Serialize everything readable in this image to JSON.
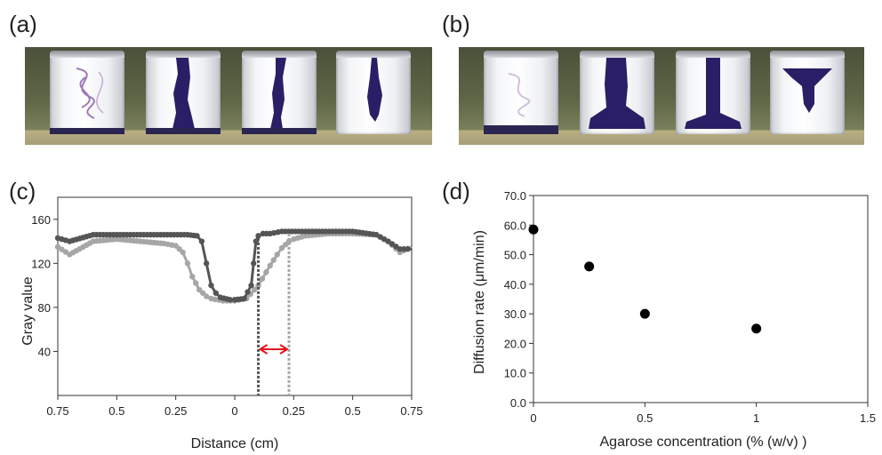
{
  "panels": {
    "a": "(a)",
    "b": "(b)",
    "c": "(c)",
    "d": "(d)"
  },
  "colors": {
    "dye": "#2a1f66",
    "series_dark": "#555555",
    "series_light": "#a6a6a6",
    "arrow": "#e8141b",
    "points": "#000000"
  },
  "chart_data": [
    {
      "panel": "c",
      "type": "line",
      "xlabel": "Distance (cm)",
      "ylabel": "Gray value",
      "xticks": [
        "0.75",
        "0.5",
        "0.25",
        "0",
        "0.25",
        "0.5",
        "0.75"
      ],
      "yticks": [
        40,
        80,
        120,
        160
      ],
      "xlim": [
        -0.75,
        0.75
      ],
      "ylim": [
        0,
        180
      ],
      "grid": false,
      "series": [
        {
          "x": [
            -0.75,
            -0.7,
            -0.6,
            -0.5,
            -0.4,
            -0.3,
            -0.2,
            -0.16,
            -0.14,
            -0.12,
            -0.1,
            -0.08,
            -0.06,
            -0.02,
            0.0,
            0.04,
            0.07,
            0.08,
            0.09,
            0.1,
            0.12,
            0.15,
            0.2,
            0.3,
            0.4,
            0.5,
            0.6,
            0.65,
            0.7,
            0.75
          ],
          "y": [
            143,
            140,
            146,
            146,
            146,
            146,
            146,
            145,
            140,
            120,
            100,
            93,
            89,
            87,
            87,
            88,
            100,
            120,
            140,
            145,
            147,
            147,
            149,
            149,
            149,
            149,
            146,
            140,
            133,
            133
          ]
        },
        {
          "x": [
            -0.75,
            -0.7,
            -0.6,
            -0.5,
            -0.4,
            -0.3,
            -0.25,
            -0.22,
            -0.2,
            -0.18,
            -0.15,
            -0.12,
            -0.1,
            -0.05,
            0.0,
            0.05,
            0.1,
            0.15,
            0.18,
            0.2,
            0.23,
            0.25,
            0.3,
            0.4,
            0.5,
            0.6,
            0.65,
            0.7,
            0.75
          ],
          "y": [
            135,
            128,
            140,
            142,
            140,
            138,
            136,
            130,
            120,
            108,
            96,
            90,
            88,
            86,
            86,
            88,
            100,
            118,
            128,
            134,
            140,
            142,
            145,
            147,
            147,
            146,
            140,
            130,
            135
          ]
        }
      ],
      "markers_x": [
        0.1,
        0.23
      ]
    },
    {
      "panel": "d",
      "type": "scatter",
      "xlabel": "Agarose concentration (% (w/v) )",
      "ylabel": "Diffusion rate (μm/min)",
      "xticks": [
        "0",
        "0.5",
        "1",
        "1.5"
      ],
      "yticks": [
        "0.0",
        "10.0",
        "20.0",
        "30.0",
        "40.0",
        "50.0",
        "60.0",
        "70.0"
      ],
      "xlim": [
        0,
        1.5
      ],
      "ylim": [
        0,
        70
      ],
      "grid": false,
      "x": [
        0,
        0.25,
        0.5,
        1.0
      ],
      "y": [
        58.5,
        46,
        30,
        25
      ]
    }
  ]
}
